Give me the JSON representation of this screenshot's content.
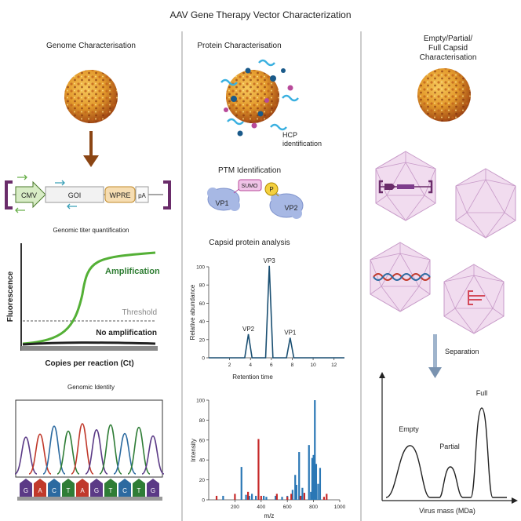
{
  "title": "AAV Gene Therapy Vector Characterization",
  "genome": {
    "heading": "Genome Characterisation",
    "construct": {
      "cmv": "CMV",
      "goi": "GOI",
      "wpre": "WPRE",
      "pa": "pA"
    },
    "titer_caption": "Genomic titer quantification",
    "qpcr": {
      "ylabel": "Fluorescence",
      "xlabel": "Copies per reaction (Ct)",
      "amplification": "Amplification",
      "threshold": "Threshold",
      "no_amplification": "No amplification",
      "colors": {
        "amplification": "#2e7d32",
        "threshold": "#888888"
      }
    },
    "identity_caption": "Genomic Identity",
    "sequence": [
      "G",
      "A",
      "C",
      "T",
      "A",
      "G",
      "T",
      "C",
      "T",
      "G"
    ],
    "base_colors": {
      "G": "#5b3a86",
      "A": "#c0392b",
      "C": "#2c6aa0",
      "T": "#2f7d36"
    }
  },
  "protein": {
    "heading": "Protein Characterisation",
    "hcp_label_1": "HCP",
    "hcp_label_2": "identification",
    "ptm_heading": "PTM Identification",
    "ptm": {
      "sumo": "SUMO",
      "phospho": "P",
      "vp1": "VP1",
      "vp2": "VP2"
    },
    "capsid_heading": "Capsid protein analysis"
  },
  "capsid": {
    "heading_lines": [
      "Empty/Partial/",
      "Full Capsid",
      "Characterisation"
    ],
    "separation": "Separation",
    "xlabel": "Virus mass (MDa)",
    "peaks": {
      "empty": "Empty",
      "partial": "Partial",
      "full": "Full"
    }
  },
  "chart_data": [
    {
      "type": "line",
      "title": "Capsid protein analysis",
      "xlabel": "Retention time",
      "ylabel": "Relative abundance",
      "xlim": [
        0,
        13
      ],
      "ylim": [
        0,
        100
      ],
      "xticks": [
        2,
        4,
        6,
        8,
        10,
        12
      ],
      "yticks": [
        0,
        20,
        40,
        60,
        80,
        100
      ],
      "peaks": [
        {
          "label": "VP2",
          "x": 3.8,
          "y": 26
        },
        {
          "label": "VP3",
          "x": 5.8,
          "y": 101
        },
        {
          "label": "VP1",
          "x": 7.8,
          "y": 22
        }
      ],
      "color": "#1a4f72"
    },
    {
      "type": "bar",
      "title": "",
      "xlabel": "m/z",
      "ylabel": "Intensity",
      "xlim": [
        0,
        1000
      ],
      "ylim": [
        0,
        100
      ],
      "xticks": [
        200,
        400,
        600,
        800,
        1000
      ],
      "yticks": [
        0,
        20,
        40,
        60,
        80,
        100
      ],
      "series": [
        {
          "name": "blue",
          "color": "#2a77b5",
          "x": [
            110,
            250,
            285,
            310,
            330,
            360,
            420,
            440,
            510,
            560,
            600,
            640,
            660,
            670,
            690,
            705,
            715,
            765,
            780,
            790,
            800,
            810,
            820,
            835,
            850
          ],
          "y": [
            4,
            33,
            5,
            4,
            6,
            4,
            4,
            3,
            4,
            3,
            4,
            10,
            25,
            15,
            48,
            4,
            12,
            55,
            8,
            42,
            45,
            100,
            36,
            16,
            32
          ]
        },
        {
          "name": "red",
          "color": "#c62828",
          "x": [
            60,
            200,
            300,
            380,
            400,
            520,
            600,
            630,
            700,
            730,
            880,
            900
          ],
          "y": [
            4,
            6,
            8,
            61,
            4,
            6,
            3,
            6,
            4,
            7,
            3,
            6
          ]
        }
      ]
    },
    {
      "type": "line",
      "title": "",
      "xlabel": "Virus mass (MDa)",
      "ylabel": "",
      "peaks": [
        {
          "label": "Empty",
          "x": 1,
          "y": 55
        },
        {
          "label": "Partial",
          "x": 2,
          "y": 34
        },
        {
          "label": "Full",
          "x": 3,
          "y": 93
        }
      ]
    }
  ]
}
